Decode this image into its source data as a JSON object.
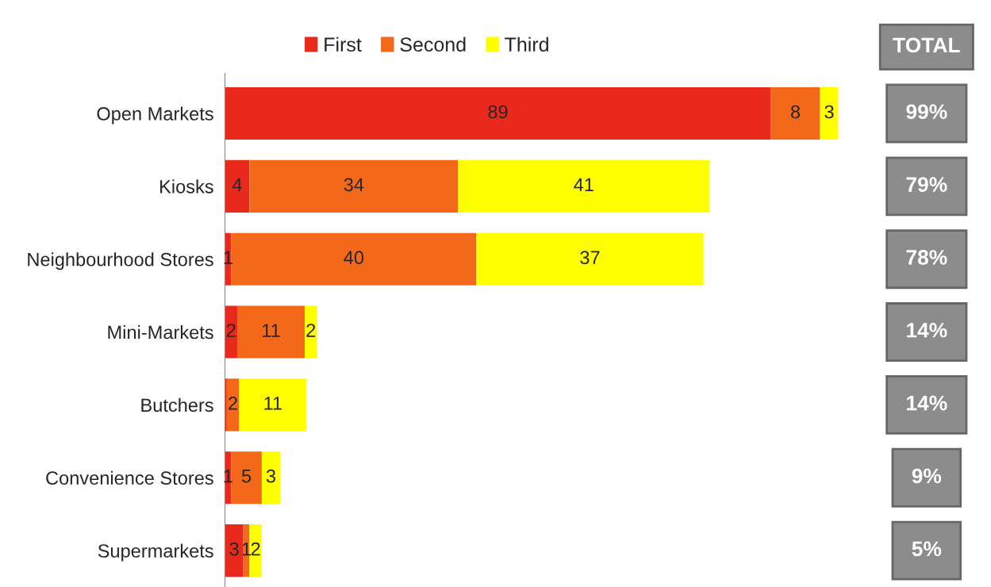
{
  "chart_data": {
    "type": "bar",
    "orientation": "horizontal",
    "stacked": true,
    "categories": [
      "Open Markets",
      "Kiosks",
      "Neighbourhood Stores",
      "Mini-Markets",
      "Butchers",
      "Convenience Stores",
      "Supermarkets"
    ],
    "series": [
      {
        "name": "First",
        "color": "#e8291c",
        "values": [
          89,
          4,
          1,
          2,
          0.3,
          1,
          3
        ],
        "value_labels": [
          "89",
          "4",
          "1",
          "2",
          null,
          "1",
          "3"
        ]
      },
      {
        "name": "Second",
        "color": "#f4681a",
        "values": [
          8,
          34,
          40,
          11,
          2,
          5,
          1
        ],
        "value_labels": [
          "8",
          "34",
          "40",
          "11",
          "2",
          "5",
          "1"
        ]
      },
      {
        "name": "Third",
        "color": "#ffff00",
        "values": [
          3,
          41,
          37,
          2,
          11,
          3,
          2
        ],
        "value_labels": [
          "3",
          "41",
          "37",
          "2",
          "11",
          "3",
          "2"
        ]
      }
    ],
    "xlim": [
      0,
      100
    ],
    "tick_labels": "y",
    "legend": "top",
    "annotations": [
      "TOTAL",
      "99%",
      "79%",
      "78%",
      "14%",
      "14%",
      "9%",
      "5%"
    ]
  }
}
